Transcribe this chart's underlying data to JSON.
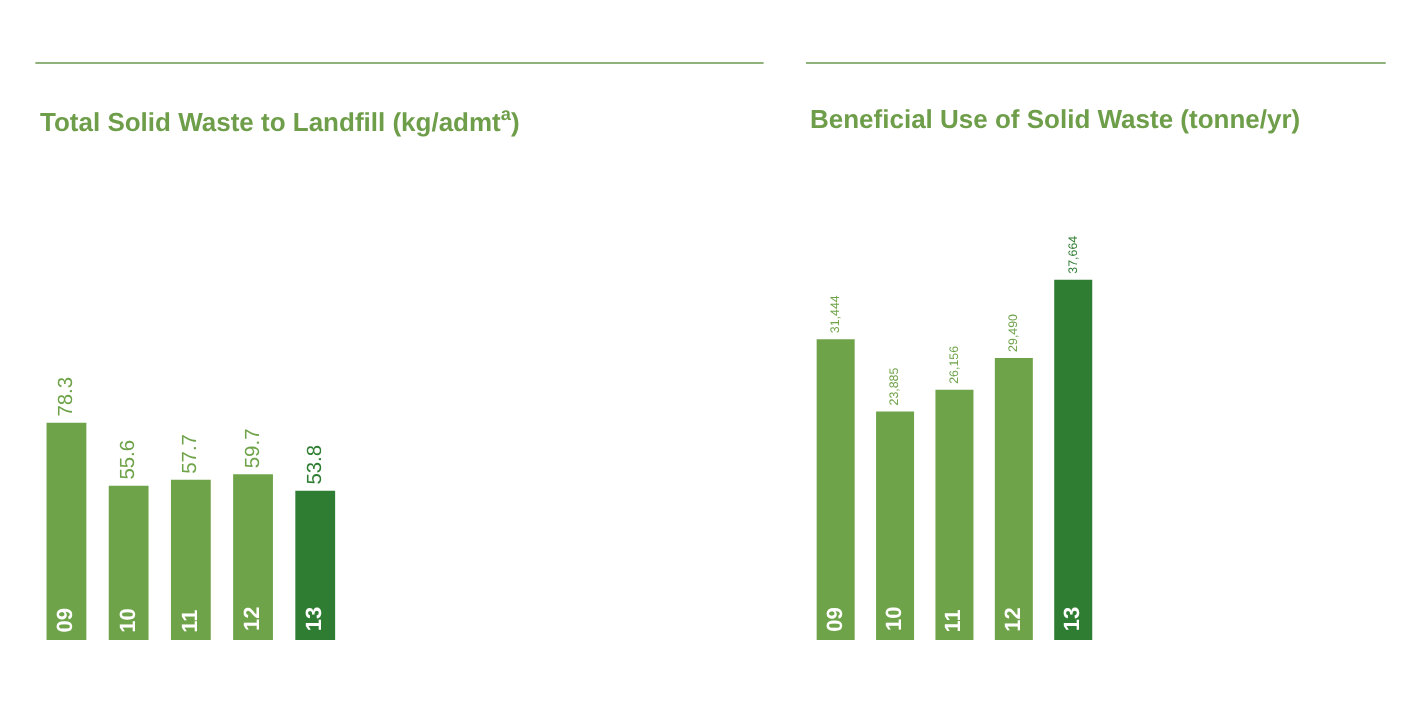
{
  "chart_data": [
    {
      "type": "bar",
      "title": "Total Solid Waste to Landfill (kg/admt$^{a}$)",
      "categories": [
        "09",
        "10",
        "11",
        "12",
        "13"
      ],
      "values": [
        78.3,
        55.6,
        57.7,
        59.7,
        53.8
      ],
      "colors": [
        "#6fa34a",
        "#6fa34a",
        "#6fa34a",
        "#6fa34a",
        "#2e7d32"
      ],
      "value_labels": [
        "78.3",
        "55.6",
        "57.7",
        "59.7",
        "53.8"
      ]
    },
    {
      "type": "bar",
      "title": "Beneficial Use of Solid Waste (tonne/yr)",
      "categories": [
        "09",
        "10",
        "11",
        "12",
        "13"
      ],
      "values": [
        31444,
        23885,
        26156,
        29490,
        37664
      ],
      "colors": [
        "#6fa34a",
        "#6fa34a",
        "#6fa34a",
        "#6fa34a",
        "#2e7d32"
      ],
      "value_labels": [
        "31,444",
        "23,885",
        "26,156",
        "29,490",
        "37,664"
      ]
    }
  ]
}
